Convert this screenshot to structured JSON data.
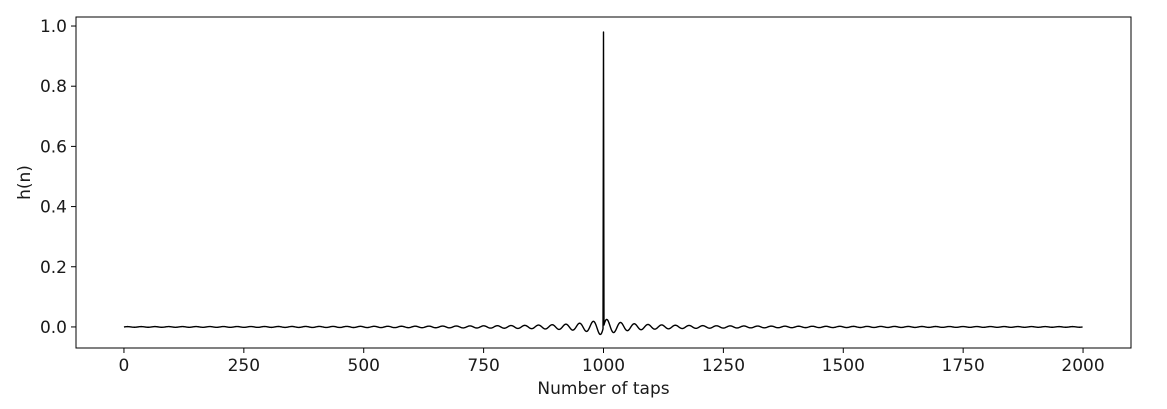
{
  "chart_data": {
    "type": "line",
    "title": "",
    "xlabel": "Number of taps",
    "ylabel": "h(n)",
    "xlim": [
      -100,
      2100
    ],
    "ylim": [
      -0.07,
      1.03
    ],
    "x_ticks": [
      0,
      250,
      500,
      750,
      1000,
      1250,
      1500,
      1750,
      2000
    ],
    "x_tick_labels": [
      "0",
      "250",
      "500",
      "750",
      "1000",
      "1250",
      "1500",
      "1750",
      "2000"
    ],
    "y_ticks": [
      0.0,
      0.2,
      0.4,
      0.6,
      0.8,
      1.0
    ],
    "y_tick_labels": [
      "0.0",
      "0.2",
      "0.4",
      "0.6",
      "0.8",
      "1.0"
    ],
    "grid": false,
    "legend": "none",
    "line_color": "#000000",
    "series": [
      {
        "x": [
          0,
          1999
        ],
        "peak": {
          "x": 1000,
          "y": 0.98
        },
        "description_points": [
          [
            0,
            0.0
          ],
          [
            350,
            0.0
          ],
          [
            500,
            0.002
          ],
          [
            700,
            0.004
          ],
          [
            850,
            0.007
          ],
          [
            930,
            0.012
          ],
          [
            970,
            0.017
          ],
          [
            985,
            -0.015
          ],
          [
            995,
            -0.025
          ],
          [
            1000,
            0.98
          ],
          [
            1005,
            -0.025
          ],
          [
            1015,
            -0.015
          ],
          [
            1030,
            0.017
          ],
          [
            1070,
            0.012
          ],
          [
            1150,
            0.007
          ],
          [
            1300,
            0.004
          ],
          [
            1500,
            0.002
          ],
          [
            1650,
            0.0
          ],
          [
            1999,
            0.0
          ]
        ]
      }
    ]
  }
}
